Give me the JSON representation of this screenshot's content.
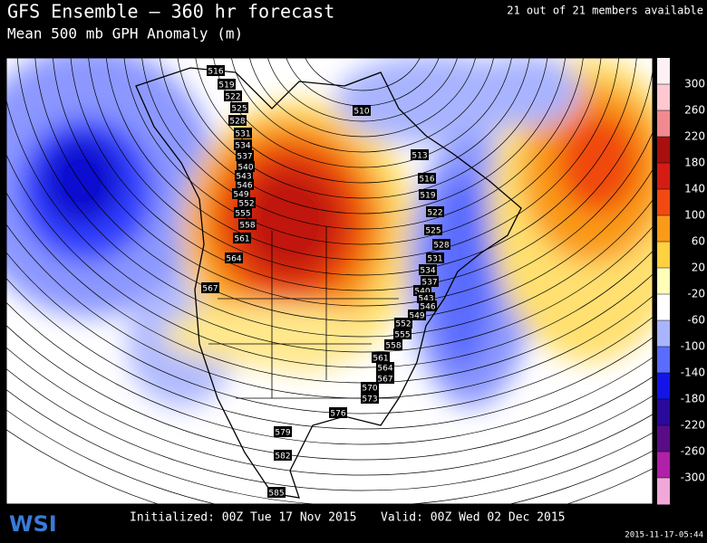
{
  "header": {
    "title": "GFS Ensemble — 360 hr forecast",
    "subtitle": "Mean 500 mb GPH Anomaly (m)",
    "members": "21 out of 21 members available"
  },
  "map": {
    "contour_labels": [
      516,
      519,
      522,
      525,
      528,
      531,
      534,
      537,
      540,
      543,
      546,
      549,
      552,
      555,
      558,
      561,
      564,
      567,
      510,
      513,
      516,
      519,
      522,
      525,
      528,
      531,
      534,
      537,
      540,
      543,
      546,
      549,
      552,
      555,
      558,
      561,
      564,
      567,
      570,
      573,
      576,
      579,
      582,
      585
    ],
    "colorbar": {
      "ticks": [
        300,
        260,
        220,
        180,
        140,
        100,
        60,
        20,
        -20,
        -60,
        -100,
        -140,
        -180,
        -220,
        -260,
        -300
      ],
      "colors": [
        "#fff0f4",
        "#ffc8d0",
        "#f08a90",
        "#a81010",
        "#d41c14",
        "#f04a10",
        "#fa9a18",
        "#ffd040",
        "#ffffb8",
        "#ffffff",
        "#a8b4ff",
        "#5a6cff",
        "#1414e8",
        "#2a0a9c",
        "#5a0c88",
        "#b020a8",
        "#f0a8d8"
      ]
    }
  },
  "footer": {
    "logo": "WSI",
    "initialized": "Initialized: 00Z Tue 17 Nov 2015",
    "valid": "Valid: 00Z Wed 02 Dec 2015",
    "timestamp": "2015-11-17-05:44"
  }
}
